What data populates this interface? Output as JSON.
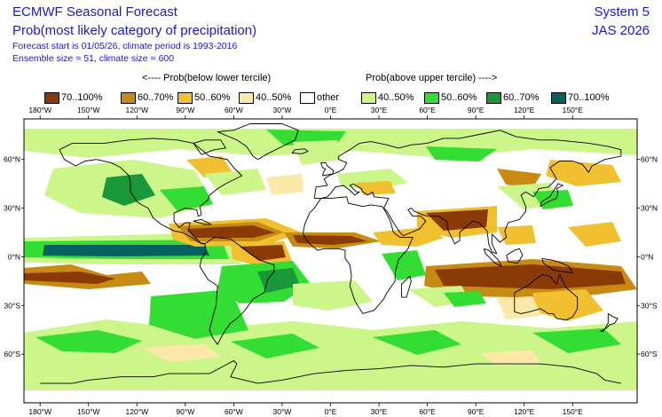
{
  "header": {
    "title": "ECMWF Seasonal Forecast",
    "subtitle": "Prob(most likely category of precipitation)",
    "forecast_line": "Forecast start is 01/05/26, climate period is 1993-2016",
    "ensemble_line": "Ensemble size = 51, climate size = 600",
    "system": "System 5",
    "season": "JAS 2026"
  },
  "legend": {
    "below_caption": "<---- Prob(below lower tercile)",
    "above_caption": "Prob(above upper tercile) ---->",
    "items": [
      {
        "label": "70..100%",
        "color": "#8a3a04"
      },
      {
        "label": "60..70%",
        "color": "#c78a12"
      },
      {
        "label": "50..60%",
        "color": "#f0c030"
      },
      {
        "label": "40..50%",
        "color": "#fce8a8"
      },
      {
        "label": "other",
        "color": "#ffffff"
      },
      {
        "label": "40..50%",
        "color": "#ccf58a"
      },
      {
        "label": "50..60%",
        "color": "#33dd33"
      },
      {
        "label": "60..70%",
        "color": "#189838"
      },
      {
        "label": "70..100%",
        "color": "#066060"
      }
    ]
  },
  "map": {
    "lon_labels": [
      "180°W",
      "150°W",
      "120°W",
      "90°W",
      "60°W",
      "30°W",
      "0°E",
      "30°E",
      "60°E",
      "90°E",
      "120°E",
      "150°E"
    ],
    "lat_labels": [
      "60°N",
      "30°N",
      "0°N",
      "30°S",
      "60°S"
    ]
  }
}
